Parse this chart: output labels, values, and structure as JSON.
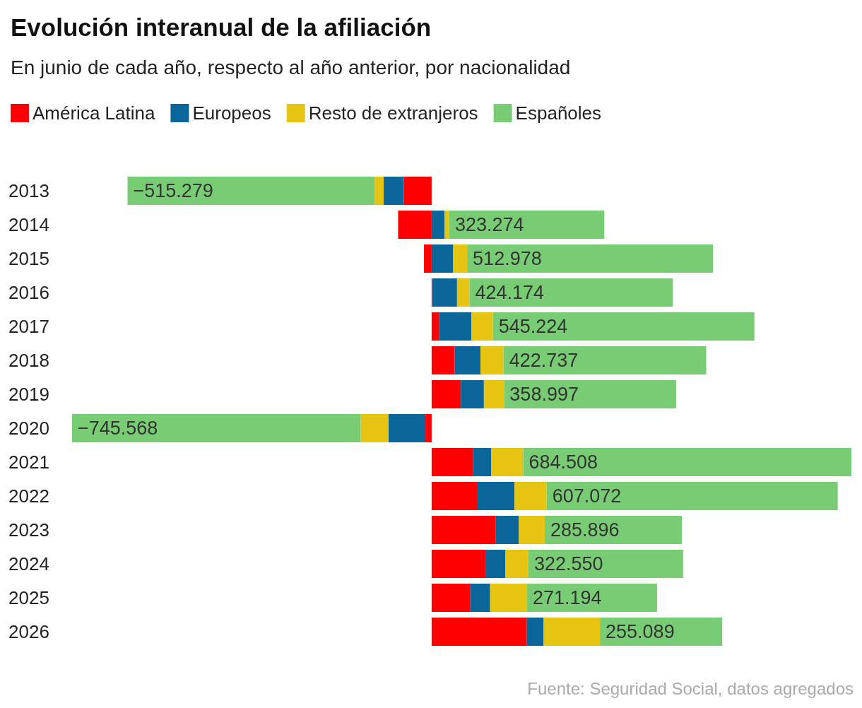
{
  "chart_data": {
    "type": "bar",
    "orientation": "horizontal",
    "stacked": true,
    "title": "Evolución interanual de la afiliación",
    "subtitle": "En junio de cada año, respecto al año anterior, por nacionalidad",
    "categories": [
      "2013",
      "2014",
      "2015",
      "2016",
      "2017",
      "2018",
      "2019",
      "2020",
      "2021",
      "2022",
      "2023",
      "2024",
      "2025",
      "2026"
    ],
    "series": [
      {
        "name": "América Latina",
        "color": "#ff0000",
        "values": [
          -58000,
          -70000,
          -16000,
          2000,
          16000,
          48000,
          61000,
          -13000,
          86000,
          96000,
          134000,
          112000,
          80000,
          198000
        ]
      },
      {
        "name": "Europeos",
        "color": "#0a6698",
        "values": [
          -42000,
          27000,
          45000,
          51000,
          67000,
          54000,
          48000,
          -77000,
          38000,
          77000,
          48000,
          42000,
          42000,
          35000
        ]
      },
      {
        "name": "Resto de extranjeros",
        "color": "#e5c412",
        "values": [
          -19000,
          10000,
          29000,
          26000,
          45000,
          48000,
          42000,
          -58000,
          67000,
          67000,
          54000,
          48000,
          77000,
          118000
        ]
      },
      {
        "name": "Españoles",
        "color": "#77cc74",
        "values": [
          -515279,
          323274,
          512978,
          424174,
          545224,
          422737,
          358997,
          -745568,
          684508,
          607072,
          285896,
          322550,
          271194,
          255089
        ],
        "value_labels": [
          "−515.279",
          "323.274",
          "512.978",
          "424.174",
          "545.224",
          "422.737",
          "358.997",
          "−745.568",
          "684.508",
          "607.072",
          "285.896",
          "322.550",
          "271.194",
          "255.089"
        ]
      }
    ],
    "xlim": [
      -750000,
      880000
    ],
    "tick_labels": "y",
    "grid": false,
    "legend": "top left",
    "annotations": [
      "Fuente: Seguridad Social, datos agregados"
    ]
  }
}
